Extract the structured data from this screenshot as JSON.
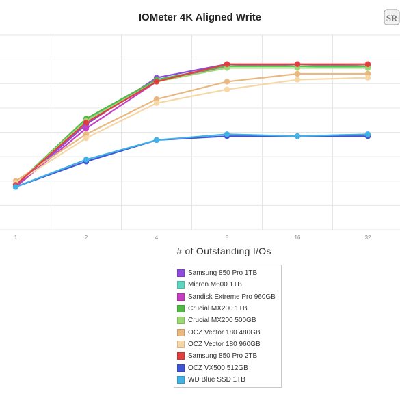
{
  "chart_data": {
    "type": "line",
    "title": "IOMeter 4K Aligned Write",
    "xlabel": "# of Outstanding I/Os",
    "ylabel": "",
    "categories": [
      "1",
      "2",
      "4",
      "8",
      "16",
      "32"
    ],
    "ylim": [
      0,
      100
    ],
    "grid": true,
    "legend_position": "bottom",
    "series": [
      {
        "name": "Samsung 850 Pro 1TB",
        "color": "#8e4bdc",
        "values": [
          22,
          54,
          78,
          85,
          84,
          84
        ]
      },
      {
        "name": "Micron M600 1TB",
        "color": "#5fd4c0",
        "values": [
          23,
          56,
          77,
          84,
          84,
          83
        ]
      },
      {
        "name": "Sandisk Extreme Pro 960GB",
        "color": "#c63ec4",
        "values": [
          22,
          52,
          76,
          84,
          85,
          84
        ]
      },
      {
        "name": "Crucial MX200 1TB",
        "color": "#54b847",
        "values": [
          23,
          57,
          77,
          84,
          84,
          84
        ]
      },
      {
        "name": "Crucial MX200 500GB",
        "color": "#9ed876",
        "values": [
          23,
          56,
          76,
          83,
          83,
          83
        ]
      },
      {
        "name": "OCZ Vector 180 480GB",
        "color": "#e8b880",
        "values": [
          25,
          49,
          67,
          76,
          80,
          80
        ]
      },
      {
        "name": "OCZ Vector 180 960GB",
        "color": "#f6d7a6",
        "values": [
          24,
          47,
          65,
          72,
          77,
          78
        ]
      },
      {
        "name": "Samsung 850 Pro 2TB",
        "color": "#df3f3f",
        "values": [
          23,
          55,
          76,
          85,
          85,
          85
        ]
      },
      {
        "name": "OCZ VX500 512GB",
        "color": "#4054d6",
        "values": [
          22,
          35,
          46,
          48,
          48,
          48
        ]
      },
      {
        "name": "WD Blue SSD 1TB",
        "color": "#42b1e6",
        "values": [
          22,
          36,
          46,
          49,
          48,
          49
        ]
      }
    ]
  },
  "logo_text": "SR"
}
